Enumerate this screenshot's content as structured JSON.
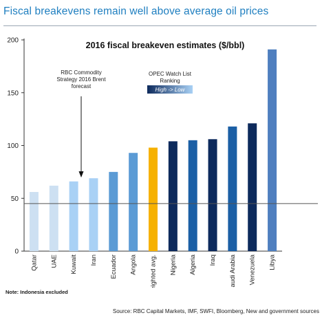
{
  "headline": "Fiscal breakevens remain well above average oil prices",
  "note": "Note: Indonesia excluded",
  "source": "Source: RBC Capital Markets, IMF, SWFI, Bloomberg, New and government sources",
  "colors": {
    "headline": "#1f7fc0",
    "tier_lightest": "#cde0f2",
    "tier_light": "#a9d1f5",
    "tier_mid": "#5b9bd5",
    "tier_gold": "#f6b100",
    "tier_navy": "#0d2a5c",
    "tier_blue": "#1b5fa5",
    "tier_libya": "#4f7fbf",
    "forecast_line": "#555555"
  },
  "chart_data": {
    "type": "bar",
    "title": "2016 fiscal breakeven estimates ($/bbl)",
    "categories": [
      "Qatar",
      "UAE",
      "Kuwait",
      "Iran",
      "Ecuador",
      "Angola",
      "Weighted avg.",
      "Nigeria",
      "Algeria",
      "Iraq",
      "Saudi Arabia",
      "Venezuela",
      "Libya"
    ],
    "values": [
      56,
      62,
      66,
      69,
      75,
      93,
      98,
      104,
      105,
      106,
      118,
      121,
      191
    ],
    "bar_colors": [
      "#cde0f2",
      "#cde0f2",
      "#a9d1f5",
      "#a9d1f5",
      "#5b9bd5",
      "#5b9bd5",
      "#f6b100",
      "#0d2a5c",
      "#1b5fa5",
      "#0d2a5c",
      "#1b5fa5",
      "#0d2a5c",
      "#4f7fbf"
    ],
    "ylim": [
      0,
      200
    ],
    "yticks": [
      0,
      50,
      100,
      150,
      200
    ],
    "grid": false,
    "reference_line": {
      "value": 45
    },
    "annotations": {
      "forecast": "RBC Commodity Strategy 2016 Brent forecast",
      "opec_watch_title": "OPEC Watch List Ranking",
      "opec_watch_gradient": "High -> Low"
    }
  }
}
